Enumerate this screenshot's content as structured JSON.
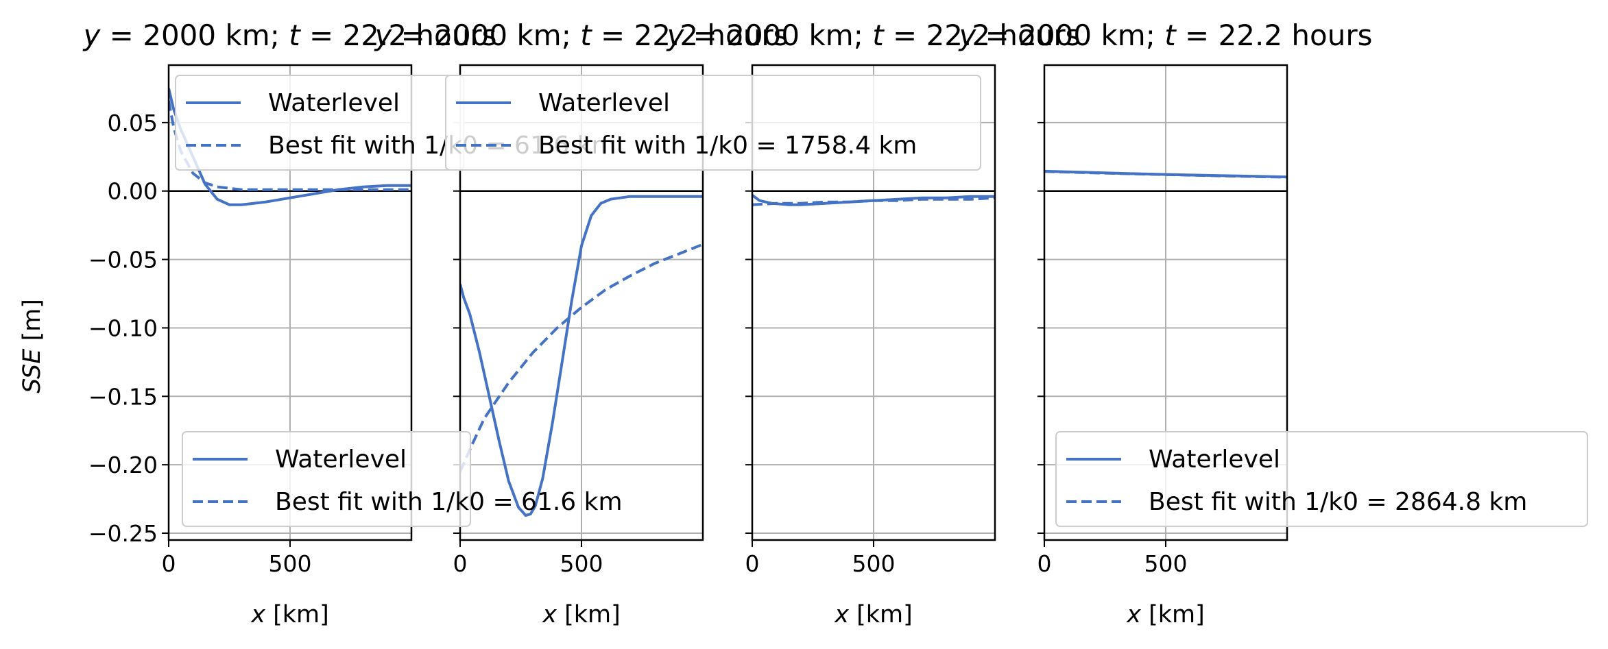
{
  "ylabel": "SSE [m]",
  "xlabel": "x [km]",
  "colors": {
    "line": "#4472C4",
    "grid": "#b0b0b0",
    "axis": "#000000",
    "zero": "#000000"
  },
  "chart_data": [
    {
      "type": "line",
      "title": "y = 2000 km; t = 22.2 hours",
      "xlabel": "x [km]",
      "ylabel": "SSE [m]",
      "xlim": [
        0,
        1000
      ],
      "ylim": [
        -0.255,
        0.092
      ],
      "xticks": [
        0,
        500
      ],
      "yticks": [
        0.05,
        0.0,
        -0.05,
        -0.1,
        -0.15,
        -0.2,
        -0.25
      ],
      "ytick_labels": [
        "0.05",
        "0.00",
        "−0.05",
        "−0.10",
        "−0.15",
        "−0.20",
        "−0.25"
      ],
      "grid": true,
      "legend_location": "upper left",
      "legend_location_2": "lower left",
      "series": [
        {
          "name": "Waterlevel",
          "style": "solid",
          "x": [
            0,
            20,
            50,
            100,
            150,
            200,
            250,
            300,
            400,
            500,
            600,
            700,
            800,
            900,
            1000
          ],
          "y": [
            0.075,
            0.06,
            0.045,
            0.025,
            0.005,
            -0.006,
            -0.01,
            -0.01,
            -0.008,
            -0.005,
            -0.002,
            0.001,
            0.003,
            0.004,
            0.004
          ]
        },
        {
          "name": "Best fit with 1/k0 = 61.6 km",
          "style": "dashed",
          "x": [
            0,
            20,
            50,
            100,
            150,
            200,
            250,
            300,
            400,
            500,
            600,
            700,
            800,
            900,
            1000
          ],
          "y": [
            0.066,
            0.047,
            0.029,
            0.013,
            0.006,
            0.003,
            0.002,
            0.001,
            0.001,
            0.001,
            0.001,
            0.001,
            0.001,
            0.001,
            0.001
          ]
        }
      ]
    },
    {
      "type": "line",
      "title": "y = 2000 km; t = 22.2 hours",
      "xlabel": "x [km]",
      "xlim": [
        0,
        1000
      ],
      "ylim": [
        -0.255,
        0.092
      ],
      "xticks": [
        0,
        500
      ],
      "grid": true,
      "legend_location": "upper left",
      "series": [
        {
          "name": "Waterlevel",
          "style": "solid",
          "x": [
            0,
            15,
            40,
            80,
            120,
            160,
            200,
            240,
            270,
            290,
            310,
            340,
            380,
            420,
            460,
            500,
            540,
            580,
            620,
            660,
            700,
            750,
            800,
            900,
            1000
          ],
          "y": [
            -0.068,
            -0.078,
            -0.09,
            -0.118,
            -0.15,
            -0.182,
            -0.212,
            -0.231,
            -0.237,
            -0.236,
            -0.23,
            -0.21,
            -0.17,
            -0.125,
            -0.08,
            -0.04,
            -0.018,
            -0.009,
            -0.006,
            -0.005,
            -0.004,
            -0.004,
            -0.004,
            -0.004,
            -0.004
          ]
        },
        {
          "name": "Best fit with 1/k0 = 1758.4 km",
          "style": "dashed",
          "x": [
            0,
            50,
            100,
            200,
            300,
            400,
            500,
            600,
            700,
            800,
            900,
            1000
          ],
          "y": [
            -0.205,
            -0.185,
            -0.166,
            -0.14,
            -0.118,
            -0.1,
            -0.085,
            -0.072,
            -0.062,
            -0.053,
            -0.046,
            -0.039
          ]
        }
      ]
    },
    {
      "type": "line",
      "title": "y = 2000 km; t = 22.2 hours",
      "xlabel": "x [km]",
      "xlim": [
        0,
        1000
      ],
      "ylim": [
        -0.255,
        0.092
      ],
      "xticks": [
        0,
        500
      ],
      "grid": true,
      "series": [
        {
          "style": "solid",
          "x": [
            0,
            30,
            80,
            150,
            200,
            300,
            400,
            500,
            600,
            700,
            800,
            900,
            1000
          ],
          "y": [
            -0.003,
            -0.007,
            -0.009,
            -0.01,
            -0.01,
            -0.009,
            -0.008,
            -0.007,
            -0.006,
            -0.005,
            -0.005,
            -0.004,
            -0.004
          ]
        },
        {
          "style": "dashed",
          "x": [
            0,
            100,
            200,
            300,
            400,
            500,
            600,
            700,
            800,
            900,
            1000
          ],
          "y": [
            -0.01,
            -0.009,
            -0.009,
            -0.008,
            -0.008,
            -0.007,
            -0.007,
            -0.006,
            -0.006,
            -0.006,
            -0.005
          ]
        }
      ]
    },
    {
      "type": "line",
      "title": "y = 2000 km; t = 22.2 hours",
      "xlabel": "x [km]",
      "xlim": [
        0,
        1000
      ],
      "ylim": [
        -0.255,
        0.092
      ],
      "xticks": [
        0,
        500
      ],
      "grid": true,
      "legend_location": "lower right",
      "series": [
        {
          "name": "Waterlevel",
          "style": "solid",
          "x": [
            0,
            200,
            400,
            600,
            800,
            1000
          ],
          "y": [
            0.0145,
            0.0135,
            0.0125,
            0.0117,
            0.011,
            0.0103
          ]
        },
        {
          "name": "Best fit with 1/k0 = 2864.8 km",
          "style": "dashed",
          "x": [
            0,
            200,
            400,
            600,
            800,
            1000
          ],
          "y": [
            0.0143,
            0.0133,
            0.0124,
            0.0116,
            0.0108,
            0.0101
          ]
        }
      ]
    }
  ]
}
